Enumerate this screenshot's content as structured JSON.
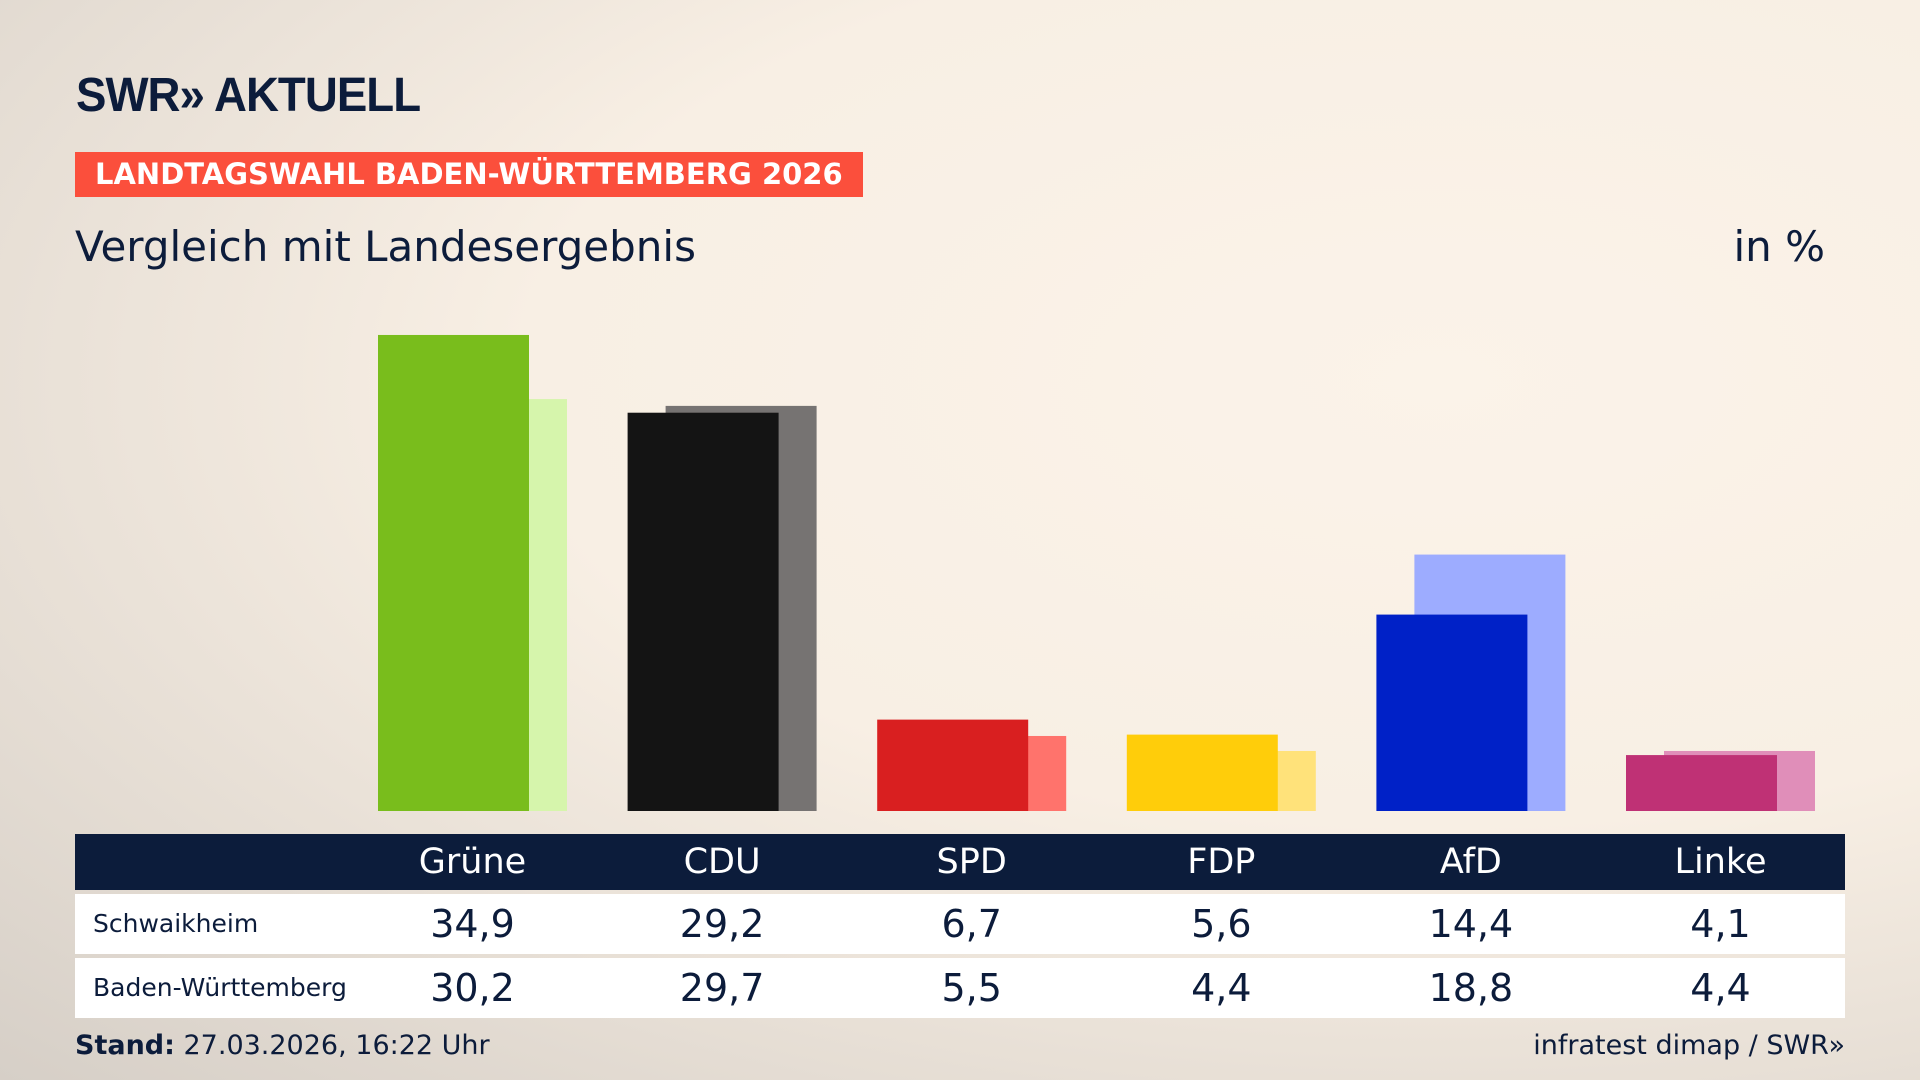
{
  "header": {
    "logo": "SWR» AKTUELL",
    "banner": "LANDTAGSWAHL BADEN-WÜRTTEMBERG 2026",
    "subtitle": "Vergleich mit Landesergebnis",
    "unit": "in %"
  },
  "chart_data": {
    "type": "bar",
    "categories": [
      "Grüne",
      "CDU",
      "SPD",
      "FDP",
      "AfD",
      "Linke"
    ],
    "series": [
      {
        "name": "Schwaikheim",
        "values": [
          34.9,
          29.2,
          6.7,
          5.6,
          14.4,
          4.1
        ]
      },
      {
        "name": "Baden-Württemberg",
        "values": [
          30.2,
          29.7,
          5.5,
          4.4,
          18.8,
          4.4
        ]
      }
    ],
    "colors": [
      "#79bd1c",
      "#141414",
      "#d91f20",
      "#ffcd0a",
      "#0021c7",
      "#bf3175"
    ],
    "light_colors": [
      "#d6f5ac",
      "#767372",
      "#ff736c",
      "#ffe27a",
      "#9dacff",
      "#e08eb9"
    ],
    "table_values": {
      "Schwaikheim": [
        "34,9",
        "29,2",
        "6,7",
        "5,6",
        "14,4",
        "4,1"
      ],
      "Baden-Württemberg": [
        "30,2",
        "29,7",
        "5,5",
        "4,4",
        "18,8",
        "4,4"
      ]
    }
  },
  "footer": {
    "stand_label": "Stand:",
    "stand_value": " 27.03.2026, 16:22 Uhr",
    "source": "infratest dimap / SWR»"
  }
}
